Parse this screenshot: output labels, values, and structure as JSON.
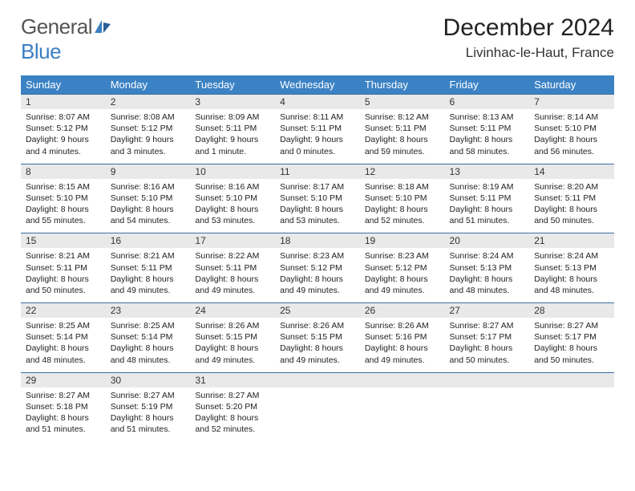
{
  "logo": {
    "text_general": "General",
    "text_blue": "Blue"
  },
  "header": {
    "month_title": "December 2024",
    "location": "Livinhac-le-Haut, France"
  },
  "colors": {
    "header_bg": "#3b82c4",
    "header_text": "#ffffff",
    "daynum_bg": "#e9e9e9",
    "row_border": "#3b6fa0",
    "logo_gray": "#555555",
    "logo_blue": "#3b7fc4"
  },
  "day_headers": [
    "Sunday",
    "Monday",
    "Tuesday",
    "Wednesday",
    "Thursday",
    "Friday",
    "Saturday"
  ],
  "weeks": [
    [
      {
        "n": "1",
        "sr": "Sunrise: 8:07 AM",
        "ss": "Sunset: 5:12 PM",
        "dl": "Daylight: 9 hours and 4 minutes."
      },
      {
        "n": "2",
        "sr": "Sunrise: 8:08 AM",
        "ss": "Sunset: 5:12 PM",
        "dl": "Daylight: 9 hours and 3 minutes."
      },
      {
        "n": "3",
        "sr": "Sunrise: 8:09 AM",
        "ss": "Sunset: 5:11 PM",
        "dl": "Daylight: 9 hours and 1 minute."
      },
      {
        "n": "4",
        "sr": "Sunrise: 8:11 AM",
        "ss": "Sunset: 5:11 PM",
        "dl": "Daylight: 9 hours and 0 minutes."
      },
      {
        "n": "5",
        "sr": "Sunrise: 8:12 AM",
        "ss": "Sunset: 5:11 PM",
        "dl": "Daylight: 8 hours and 59 minutes."
      },
      {
        "n": "6",
        "sr": "Sunrise: 8:13 AM",
        "ss": "Sunset: 5:11 PM",
        "dl": "Daylight: 8 hours and 58 minutes."
      },
      {
        "n": "7",
        "sr": "Sunrise: 8:14 AM",
        "ss": "Sunset: 5:10 PM",
        "dl": "Daylight: 8 hours and 56 minutes."
      }
    ],
    [
      {
        "n": "8",
        "sr": "Sunrise: 8:15 AM",
        "ss": "Sunset: 5:10 PM",
        "dl": "Daylight: 8 hours and 55 minutes."
      },
      {
        "n": "9",
        "sr": "Sunrise: 8:16 AM",
        "ss": "Sunset: 5:10 PM",
        "dl": "Daylight: 8 hours and 54 minutes."
      },
      {
        "n": "10",
        "sr": "Sunrise: 8:16 AM",
        "ss": "Sunset: 5:10 PM",
        "dl": "Daylight: 8 hours and 53 minutes."
      },
      {
        "n": "11",
        "sr": "Sunrise: 8:17 AM",
        "ss": "Sunset: 5:10 PM",
        "dl": "Daylight: 8 hours and 53 minutes."
      },
      {
        "n": "12",
        "sr": "Sunrise: 8:18 AM",
        "ss": "Sunset: 5:10 PM",
        "dl": "Daylight: 8 hours and 52 minutes."
      },
      {
        "n": "13",
        "sr": "Sunrise: 8:19 AM",
        "ss": "Sunset: 5:11 PM",
        "dl": "Daylight: 8 hours and 51 minutes."
      },
      {
        "n": "14",
        "sr": "Sunrise: 8:20 AM",
        "ss": "Sunset: 5:11 PM",
        "dl": "Daylight: 8 hours and 50 minutes."
      }
    ],
    [
      {
        "n": "15",
        "sr": "Sunrise: 8:21 AM",
        "ss": "Sunset: 5:11 PM",
        "dl": "Daylight: 8 hours and 50 minutes."
      },
      {
        "n": "16",
        "sr": "Sunrise: 8:21 AM",
        "ss": "Sunset: 5:11 PM",
        "dl": "Daylight: 8 hours and 49 minutes."
      },
      {
        "n": "17",
        "sr": "Sunrise: 8:22 AM",
        "ss": "Sunset: 5:11 PM",
        "dl": "Daylight: 8 hours and 49 minutes."
      },
      {
        "n": "18",
        "sr": "Sunrise: 8:23 AM",
        "ss": "Sunset: 5:12 PM",
        "dl": "Daylight: 8 hours and 49 minutes."
      },
      {
        "n": "19",
        "sr": "Sunrise: 8:23 AM",
        "ss": "Sunset: 5:12 PM",
        "dl": "Daylight: 8 hours and 49 minutes."
      },
      {
        "n": "20",
        "sr": "Sunrise: 8:24 AM",
        "ss": "Sunset: 5:13 PM",
        "dl": "Daylight: 8 hours and 48 minutes."
      },
      {
        "n": "21",
        "sr": "Sunrise: 8:24 AM",
        "ss": "Sunset: 5:13 PM",
        "dl": "Daylight: 8 hours and 48 minutes."
      }
    ],
    [
      {
        "n": "22",
        "sr": "Sunrise: 8:25 AM",
        "ss": "Sunset: 5:14 PM",
        "dl": "Daylight: 8 hours and 48 minutes."
      },
      {
        "n": "23",
        "sr": "Sunrise: 8:25 AM",
        "ss": "Sunset: 5:14 PM",
        "dl": "Daylight: 8 hours and 48 minutes."
      },
      {
        "n": "24",
        "sr": "Sunrise: 8:26 AM",
        "ss": "Sunset: 5:15 PM",
        "dl": "Daylight: 8 hours and 49 minutes."
      },
      {
        "n": "25",
        "sr": "Sunrise: 8:26 AM",
        "ss": "Sunset: 5:15 PM",
        "dl": "Daylight: 8 hours and 49 minutes."
      },
      {
        "n": "26",
        "sr": "Sunrise: 8:26 AM",
        "ss": "Sunset: 5:16 PM",
        "dl": "Daylight: 8 hours and 49 minutes."
      },
      {
        "n": "27",
        "sr": "Sunrise: 8:27 AM",
        "ss": "Sunset: 5:17 PM",
        "dl": "Daylight: 8 hours and 50 minutes."
      },
      {
        "n": "28",
        "sr": "Sunrise: 8:27 AM",
        "ss": "Sunset: 5:17 PM",
        "dl": "Daylight: 8 hours and 50 minutes."
      }
    ],
    [
      {
        "n": "29",
        "sr": "Sunrise: 8:27 AM",
        "ss": "Sunset: 5:18 PM",
        "dl": "Daylight: 8 hours and 51 minutes."
      },
      {
        "n": "30",
        "sr": "Sunrise: 8:27 AM",
        "ss": "Sunset: 5:19 PM",
        "dl": "Daylight: 8 hours and 51 minutes."
      },
      {
        "n": "31",
        "sr": "Sunrise: 8:27 AM",
        "ss": "Sunset: 5:20 PM",
        "dl": "Daylight: 8 hours and 52 minutes."
      },
      null,
      null,
      null,
      null
    ]
  ]
}
